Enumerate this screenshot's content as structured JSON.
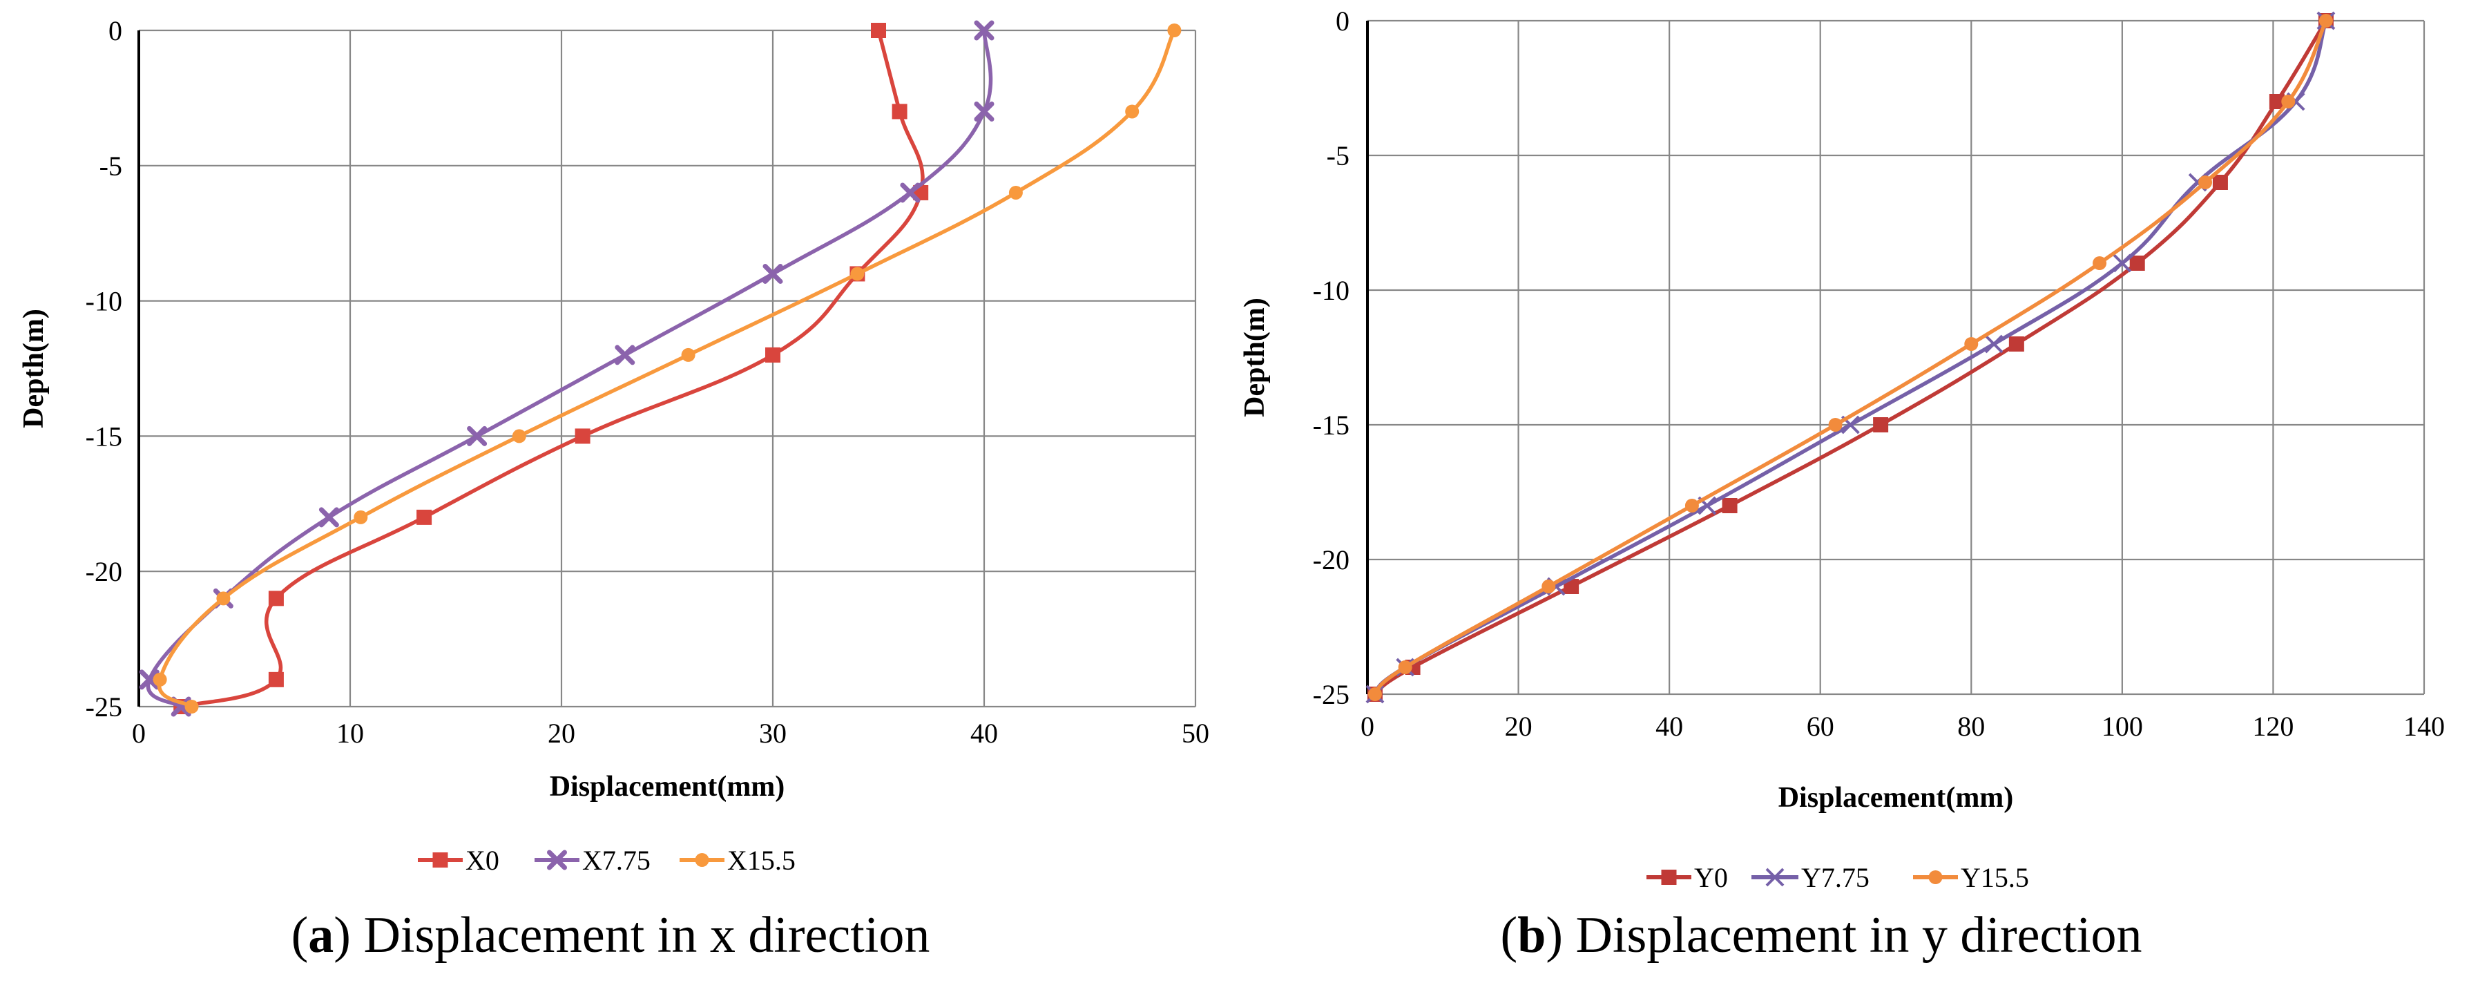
{
  "chart_data": [
    {
      "panel": "a",
      "type": "line",
      "title": "",
      "xlabel": "Displacement(mm)",
      "ylabel": "Depth(m)",
      "xlim": [
        0,
        50
      ],
      "ylim": [
        -25,
        0
      ],
      "xticks": [
        0,
        10,
        20,
        30,
        40,
        50
      ],
      "yticks": [
        0,
        -5,
        -10,
        -15,
        -20,
        -25
      ],
      "grid": true,
      "legend_position": "bottom",
      "caption_letter": "a",
      "caption_open": "(",
      "caption_close": ")",
      "caption_rest": " Displacement in x direction",
      "series": [
        {
          "name": "X0",
          "color": "#d9453d",
          "marker": "square",
          "points": [
            [
              35,
              0
            ],
            [
              36,
              -3
            ],
            [
              37,
              -6
            ],
            [
              34,
              -9
            ],
            [
              30,
              -12
            ],
            [
              21,
              -15
            ],
            [
              13.5,
              -18
            ],
            [
              6.5,
              -21
            ],
            [
              6.5,
              -24
            ],
            [
              2,
              -25
            ]
          ]
        },
        {
          "name": "X7.75",
          "color": "#8b63ac",
          "marker": "x-bold",
          "points": [
            [
              40,
              0
            ],
            [
              40,
              -3
            ],
            [
              36.5,
              -6
            ],
            [
              30,
              -9
            ],
            [
              23,
              -12
            ],
            [
              16,
              -15
            ],
            [
              9,
              -18
            ],
            [
              4,
              -21
            ],
            [
              0.5,
              -24
            ],
            [
              2,
              -25
            ]
          ]
        },
        {
          "name": "X15.5",
          "color": "#f8993d",
          "marker": "circle",
          "points": [
            [
              49,
              0
            ],
            [
              47,
              -3
            ],
            [
              41.5,
              -6
            ],
            [
              34,
              -9
            ],
            [
              26,
              -12
            ],
            [
              18,
              -15
            ],
            [
              10.5,
              -18
            ],
            [
              4,
              -21
            ],
            [
              1,
              -24
            ],
            [
              2.5,
              -25
            ]
          ]
        }
      ]
    },
    {
      "panel": "b",
      "type": "line",
      "title": "",
      "xlabel": "Displacement(mm)",
      "ylabel": "Depth(m)",
      "xlim": [
        0,
        140
      ],
      "ylim": [
        -25,
        0
      ],
      "xticks": [
        0,
        20,
        40,
        60,
        80,
        100,
        120,
        140
      ],
      "yticks": [
        0,
        -5,
        -10,
        -15,
        -20,
        -25
      ],
      "grid": true,
      "legend_position": "bottom",
      "caption_letter": "b",
      "caption_open": "(",
      "caption_close": ")",
      "caption_rest": " Displacement in y direction",
      "series": [
        {
          "name": "Y0",
          "color": "#c03a36",
          "marker": "square",
          "points": [
            [
              127,
              0
            ],
            [
              120.5,
              -3
            ],
            [
              113,
              -6
            ],
            [
              102,
              -9
            ],
            [
              86,
              -12
            ],
            [
              68,
              -15
            ],
            [
              48,
              -18
            ],
            [
              27,
              -21
            ],
            [
              6,
              -24
            ],
            [
              1,
              -25
            ]
          ]
        },
        {
          "name": "Y7.75",
          "color": "#7560a8",
          "marker": "x",
          "points": [
            [
              127,
              0
            ],
            [
              123,
              -3
            ],
            [
              110,
              -6
            ],
            [
              100,
              -9
            ],
            [
              83,
              -12
            ],
            [
              64,
              -15
            ],
            [
              45,
              -18
            ],
            [
              25,
              -21
            ],
            [
              5,
              -24
            ],
            [
              1,
              -25
            ]
          ]
        },
        {
          "name": "Y15.5",
          "color": "#f28b3c",
          "marker": "circle",
          "points": [
            [
              127,
              0
            ],
            [
              122,
              -3
            ],
            [
              111,
              -6
            ],
            [
              97,
              -9
            ],
            [
              80,
              -12
            ],
            [
              62,
              -15
            ],
            [
              43,
              -18
            ],
            [
              24,
              -21
            ],
            [
              5,
              -24
            ],
            [
              1,
              -25
            ]
          ]
        }
      ]
    }
  ]
}
